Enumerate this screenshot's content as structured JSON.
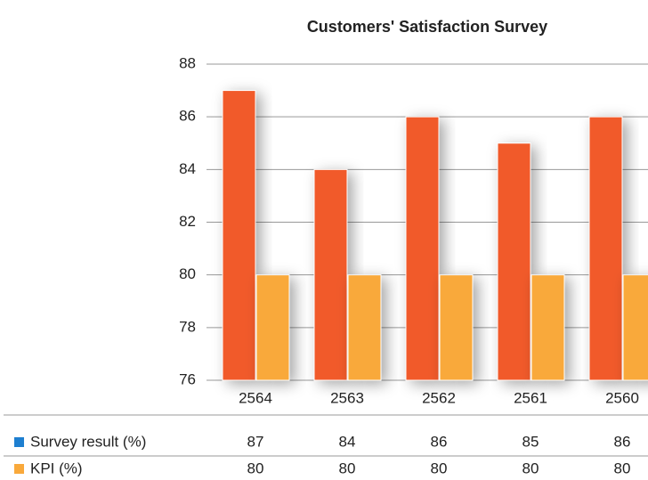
{
  "chart_data": {
    "type": "bar",
    "title": "Customers' Satisfaction Survey",
    "categories": [
      "2564",
      "2563",
      "2562",
      "2561",
      "2560"
    ],
    "series": [
      {
        "name": "Survey result (%)",
        "color": "#f15a2b",
        "legend_color": "#1e7fd0",
        "values": [
          87,
          84,
          86,
          85,
          86
        ]
      },
      {
        "name": "KPI (%)",
        "color": "#f9a93b",
        "legend_color": "#f9a93b",
        "values": [
          80,
          80,
          80,
          80,
          80
        ]
      }
    ],
    "ylim": [
      76,
      88
    ],
    "yticks": [
      76,
      78,
      80,
      82,
      84,
      86,
      88
    ],
    "grid": true,
    "data_table": true
  }
}
